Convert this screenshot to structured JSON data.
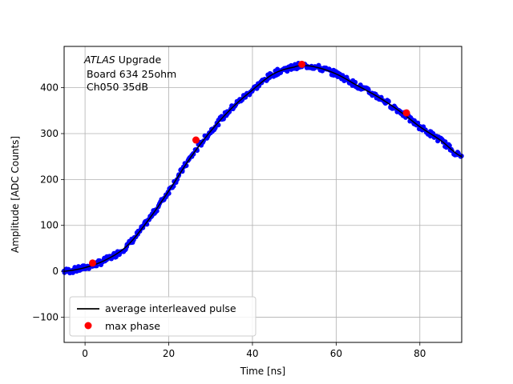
{
  "chart_data": {
    "type": "scatter",
    "xlabel": "Time [ns]",
    "ylabel": "Amplitude [ADC Counts]",
    "xlim": [
      -5,
      90
    ],
    "ylim": [
      -155,
      490
    ],
    "xticks": [
      0,
      20,
      40,
      60,
      80
    ],
    "yticks": [
      -100,
      0,
      100,
      200,
      300,
      400
    ],
    "xtick_labels": [
      "0",
      "20",
      "40",
      "60",
      "80"
    ],
    "ytick_labels": [
      "−100",
      "0",
      "100",
      "200",
      "300",
      "400"
    ],
    "grid": true,
    "legend_placement": "lower-left",
    "annotation": {
      "experiment": "ATLAS",
      "experiment_suffix": "Upgrade",
      "line2": "Board 634 25ohm",
      "line3": "Ch050 35dB"
    },
    "legend": {
      "average_label": "average interleaved pulse",
      "max_label": "max phase"
    },
    "colors": {
      "samples": "#0000ff",
      "average": "#000000",
      "max_phase": "#ff0000",
      "grid": "#b0b0b0"
    },
    "average_pulse": {
      "x": [
        -5,
        0,
        5,
        10,
        15,
        20,
        25,
        30,
        35,
        40,
        45,
        50,
        52,
        55,
        60,
        65,
        70,
        75,
        80,
        85,
        90
      ],
      "y": [
        0,
        8,
        25,
        55,
        110,
        175,
        245,
        305,
        355,
        395,
        430,
        445,
        448,
        445,
        430,
        405,
        380,
        350,
        315,
        285,
        250
      ]
    },
    "max_phase_points": {
      "x": [
        1.8,
        26.5,
        51.8,
        76.8
      ],
      "y": [
        18,
        286,
        451,
        345
      ]
    }
  }
}
